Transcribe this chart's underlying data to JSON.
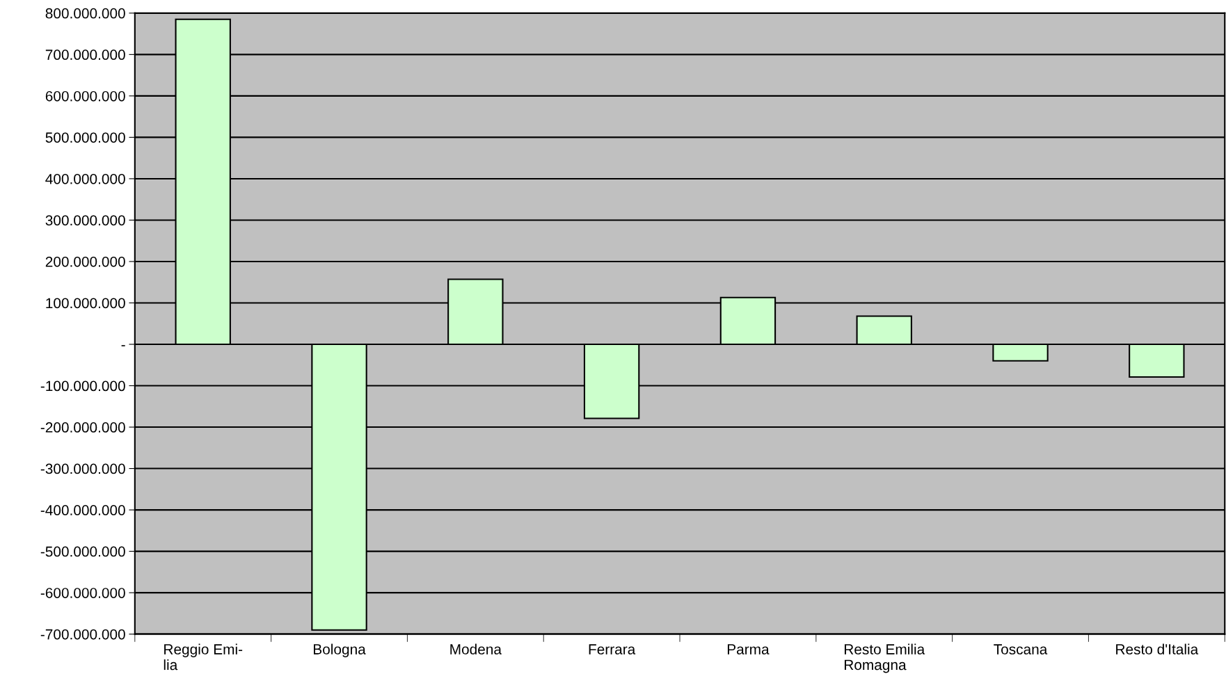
{
  "chart_data": {
    "type": "bar",
    "categories": [
      "Reggio Emi-\nlia",
      "Bologna",
      "Modena",
      "Ferrara",
      "Parma",
      "Resto Emilia\nRomagna",
      "Toscana",
      "Resto d'Italia"
    ],
    "values": [
      785000000,
      -690000000,
      157000000,
      -179000000,
      113000000,
      68000000,
      -40000000,
      -79000000
    ],
    "color": "#ccffcc",
    "ylim": [
      -700000000,
      800000000
    ],
    "yticks": [
      {
        "value": -700000000,
        "label": "-700.000.000"
      },
      {
        "value": -600000000,
        "label": "-600.000.000"
      },
      {
        "value": -500000000,
        "label": "-500.000.000"
      },
      {
        "value": -400000000,
        "label": "-400.000.000"
      },
      {
        "value": -300000000,
        "label": "-300.000.000"
      },
      {
        "value": -200000000,
        "label": "-200.000.000"
      },
      {
        "value": -100000000,
        "label": "-100.000.000"
      },
      {
        "value": 0,
        "label": "-"
      },
      {
        "value": 100000000,
        "label": "100.000.000"
      },
      {
        "value": 200000000,
        "label": "200.000.000"
      },
      {
        "value": 300000000,
        "label": "300.000.000"
      },
      {
        "value": 400000000,
        "label": "400.000.000"
      },
      {
        "value": 500000000,
        "label": "500.000.000"
      },
      {
        "value": 600000000,
        "label": "600.000.000"
      },
      {
        "value": 700000000,
        "label": "700.000.000"
      },
      {
        "value": 800000000,
        "label": "800.000.000"
      }
    ],
    "grid": "y"
  }
}
